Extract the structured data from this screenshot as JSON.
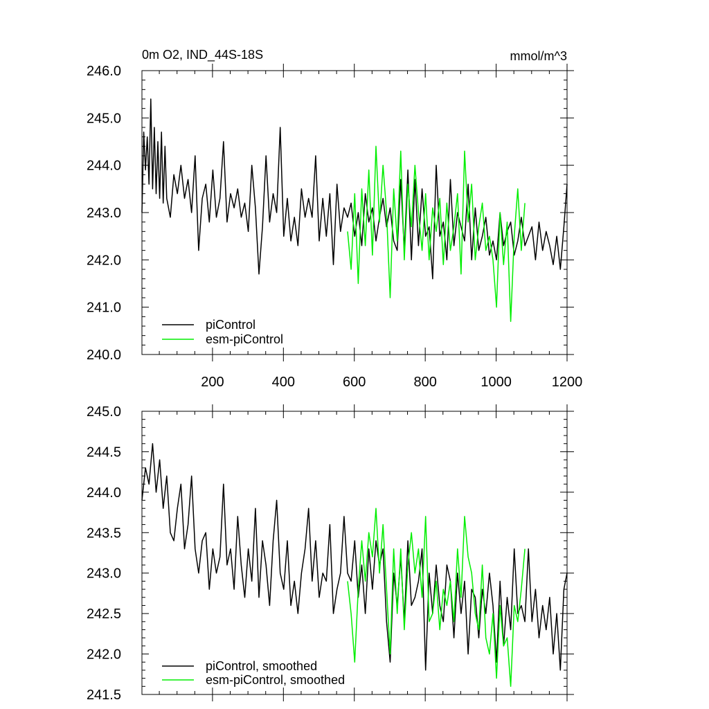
{
  "chart_data": [
    {
      "type": "line",
      "title": "0m O2, IND_44S-18S",
      "units": "mmol/m^3",
      "xlim": [
        1,
        1200
      ],
      "ylim": [
        240.0,
        246.0
      ],
      "xticks": [
        200,
        400,
        600,
        800,
        1000,
        1200
      ],
      "xtick_labels": [
        "200",
        "400",
        "600",
        "800",
        "1000",
        "1200"
      ],
      "yticks": [
        240.0,
        241.0,
        242.0,
        243.0,
        244.0,
        245.0,
        246.0
      ],
      "ytick_labels": [
        "240.0",
        "241.0",
        "242.0",
        "243.0",
        "244.0",
        "245.0",
        "246.0"
      ],
      "legend_position": "bottom-left",
      "series": [
        {
          "name": "piControl",
          "color": "#000000",
          "x": [
            1,
            6,
            11,
            16,
            21,
            26,
            31,
            36,
            41,
            46,
            51,
            56,
            61,
            66,
            71,
            81,
            91,
            101,
            111,
            121,
            131,
            141,
            151,
            161,
            171,
            181,
            191,
            201,
            211,
            221,
            231,
            241,
            251,
            261,
            271,
            281,
            291,
            301,
            311,
            321,
            331,
            341,
            351,
            361,
            371,
            381,
            391,
            401,
            411,
            421,
            431,
            441,
            451,
            461,
            471,
            481,
            491,
            501,
            511,
            521,
            531,
            541,
            551,
            561,
            571,
            581,
            591,
            601,
            611,
            621,
            631,
            641,
            651,
            661,
            671,
            681,
            691,
            701,
            711,
            721,
            731,
            741,
            751,
            761,
            771,
            781,
            791,
            801,
            811,
            821,
            831,
            841,
            851,
            861,
            871,
            881,
            891,
            901,
            911,
            921,
            931,
            941,
            951,
            961,
            971,
            981,
            991,
            1001,
            1011,
            1021,
            1031,
            1041,
            1051,
            1061,
            1071,
            1081,
            1091,
            1101,
            1111,
            1121,
            1131,
            1141,
            1151,
            1161,
            1171,
            1181,
            1191,
            1200
          ],
          "y": [
            243.0,
            244.7,
            243.9,
            244.6,
            243.6,
            245.4,
            243.5,
            244.8,
            243.4,
            244.5,
            243.3,
            244.7,
            243.2,
            244.4,
            243.3,
            242.9,
            243.8,
            243.4,
            244.0,
            243.3,
            243.7,
            243.0,
            244.2,
            242.2,
            243.3,
            243.6,
            242.8,
            243.9,
            242.9,
            243.3,
            244.5,
            242.8,
            243.4,
            243.1,
            243.5,
            242.9,
            243.2,
            242.6,
            244.0,
            243.1,
            241.7,
            242.7,
            244.2,
            242.8,
            243.4,
            243.0,
            244.8,
            242.5,
            243.3,
            242.4,
            242.9,
            242.3,
            243.5,
            242.9,
            243.3,
            242.9,
            244.2,
            242.4,
            243.3,
            242.5,
            243.4,
            241.9,
            243.6,
            242.6,
            243.1,
            242.9,
            243.2,
            242.5,
            243.0,
            242.3,
            243.4,
            242.8,
            243.1,
            242.4,
            242.9,
            243.3,
            242.7,
            243.1,
            242.4,
            242.2,
            243.7,
            242.2,
            243.9,
            242.0,
            243.7,
            242.3,
            243.5,
            242.5,
            242.7,
            241.6,
            244.0,
            242.5,
            242.8,
            242.0,
            243.7,
            242.3,
            243.0,
            242.7,
            242.4,
            243.6,
            242.0,
            243.1,
            242.2,
            242.5,
            242.9,
            242.1,
            242.4,
            242.0,
            243.0,
            242.3,
            242.6,
            242.8,
            242.1,
            242.4,
            242.9,
            242.3,
            242.5,
            242.7,
            242.0,
            242.8,
            242.2,
            242.6,
            242.3,
            241.9,
            242.5,
            241.8,
            242.7,
            243.6
          ]
        },
        {
          "name": "esm-piControl",
          "color": "#00ee00",
          "x": [
            581,
            591,
            601,
            611,
            621,
            631,
            641,
            651,
            661,
            671,
            681,
            691,
            701,
            711,
            721,
            731,
            741,
            751,
            761,
            771,
            781,
            791,
            801,
            811,
            821,
            831,
            841,
            851,
            861,
            871,
            881,
            891,
            901,
            911,
            921,
            931,
            941,
            951,
            961,
            971,
            981,
            991,
            1001,
            1011,
            1021,
            1031,
            1041,
            1051,
            1061,
            1071,
            1081
          ],
          "y": [
            242.6,
            241.8,
            243.4,
            241.5,
            243.5,
            242.3,
            243.9,
            242.1,
            244.4,
            242.8,
            244.0,
            243.0,
            241.2,
            243.5,
            242.4,
            244.3,
            242.0,
            243.6,
            242.7,
            244.0,
            243.0,
            242.2,
            243.4,
            242.0,
            243.1,
            242.6,
            243.3,
            241.9,
            243.2,
            242.2,
            242.7,
            243.4,
            241.7,
            244.3,
            242.8,
            243.6,
            242.0,
            242.7,
            243.2,
            242.2,
            242.5,
            242.0,
            241.0,
            243.0,
            241.9,
            242.8,
            240.7,
            242.5,
            243.5,
            242.2,
            243.2
          ]
        }
      ]
    },
    {
      "type": "line",
      "title": "",
      "xlim": [
        1,
        1200
      ],
      "ylim": [
        241.5,
        245.0
      ],
      "xticks": [
        200,
        400,
        600,
        800,
        1000,
        1200
      ],
      "yticks": [
        241.5,
        242.0,
        242.5,
        243.0,
        243.5,
        244.0,
        244.5,
        245.0
      ],
      "ytick_labels": [
        "241.5",
        "242.0",
        "242.5",
        "243.0",
        "243.5",
        "244.0",
        "244.5",
        "245.0"
      ],
      "legend_position": "bottom-left",
      "series": [
        {
          "name": "piControl, smoothed",
          "color": "#000000",
          "x": [
            1,
            11,
            21,
            31,
            41,
            51,
            61,
            71,
            81,
            91,
            101,
            111,
            121,
            131,
            141,
            151,
            161,
            171,
            181,
            191,
            201,
            211,
            221,
            231,
            241,
            251,
            261,
            271,
            281,
            291,
            301,
            311,
            321,
            331,
            341,
            351,
            361,
            371,
            381,
            391,
            401,
            411,
            421,
            431,
            441,
            451,
            461,
            471,
            481,
            491,
            501,
            511,
            521,
            531,
            541,
            551,
            561,
            571,
            581,
            591,
            601,
            611,
            621,
            631,
            641,
            651,
            661,
            671,
            681,
            691,
            701,
            711,
            721,
            731,
            741,
            751,
            761,
            771,
            781,
            791,
            801,
            811,
            821,
            831,
            841,
            851,
            861,
            871,
            881,
            891,
            901,
            911,
            921,
            931,
            941,
            951,
            961,
            971,
            981,
            991,
            1001,
            1011,
            1021,
            1031,
            1041,
            1051,
            1061,
            1071,
            1081,
            1091,
            1101,
            1111,
            1121,
            1131,
            1141,
            1151,
            1161,
            1171,
            1181,
            1191,
            1200
          ],
          "y": [
            243.9,
            244.3,
            244.1,
            244.6,
            244.0,
            244.4,
            243.8,
            244.2,
            243.5,
            243.4,
            243.8,
            244.1,
            243.3,
            243.6,
            244.2,
            243.3,
            243.0,
            243.4,
            243.5,
            242.8,
            243.3,
            243.0,
            243.2,
            244.1,
            243.1,
            243.3,
            242.8,
            243.7,
            243.1,
            242.7,
            243.3,
            242.9,
            243.8,
            242.7,
            243.4,
            243.1,
            242.6,
            243.4,
            243.9,
            243.0,
            242.8,
            243.4,
            242.6,
            242.9,
            242.5,
            243.0,
            243.3,
            243.8,
            242.9,
            243.4,
            242.7,
            243.0,
            242.9,
            243.6,
            242.5,
            242.8,
            243.0,
            243.7,
            243.0,
            242.9,
            243.4,
            242.7,
            243.1,
            242.5,
            243.3,
            242.8,
            243.4,
            243.1,
            243.3,
            242.4,
            241.9,
            243.0,
            242.6,
            243.2,
            242.4,
            243.4,
            242.6,
            242.7,
            242.9,
            243.3,
            241.8,
            243.0,
            242.5,
            243.1,
            242.6,
            242.4,
            243.1,
            242.9,
            242.2,
            243.0,
            242.5,
            242.9,
            242.0,
            242.8,
            242.7,
            242.2,
            242.8,
            242.5,
            243.0,
            242.6,
            241.9,
            242.9,
            242.1,
            242.7,
            242.3,
            243.3,
            242.5,
            242.6,
            242.4,
            243.3,
            242.4,
            242.8,
            242.2,
            242.6,
            242.3,
            242.7,
            242.0,
            242.5,
            241.8,
            242.8,
            243.0
          ]
        },
        {
          "name": "esm-piControl, smoothed",
          "color": "#00ee00",
          "x": [
            581,
            591,
            601,
            611,
            621,
            631,
            641,
            651,
            661,
            671,
            681,
            691,
            701,
            711,
            721,
            731,
            741,
            751,
            761,
            771,
            781,
            791,
            801,
            811,
            821,
            831,
            841,
            851,
            861,
            871,
            881,
            891,
            901,
            911,
            921,
            931,
            941,
            951,
            961,
            971,
            981,
            991,
            1001,
            1011,
            1021,
            1031,
            1041,
            1051,
            1061,
            1071,
            1081
          ],
          "y": [
            242.9,
            242.5,
            241.9,
            242.8,
            243.4,
            242.9,
            243.5,
            243.2,
            243.8,
            243.0,
            243.6,
            242.8,
            242.0,
            243.3,
            242.5,
            243.3,
            242.3,
            243.1,
            243.5,
            243.0,
            243.3,
            242.7,
            243.7,
            242.4,
            242.5,
            242.9,
            242.3,
            242.8,
            242.6,
            242.9,
            242.4,
            243.3,
            242.7,
            243.7,
            243.2,
            243.0,
            242.5,
            242.3,
            243.1,
            242.2,
            242.0,
            242.5,
            241.7,
            242.6,
            242.1,
            242.2,
            241.6,
            242.6,
            242.4,
            242.8,
            243.3
          ]
        }
      ]
    }
  ]
}
